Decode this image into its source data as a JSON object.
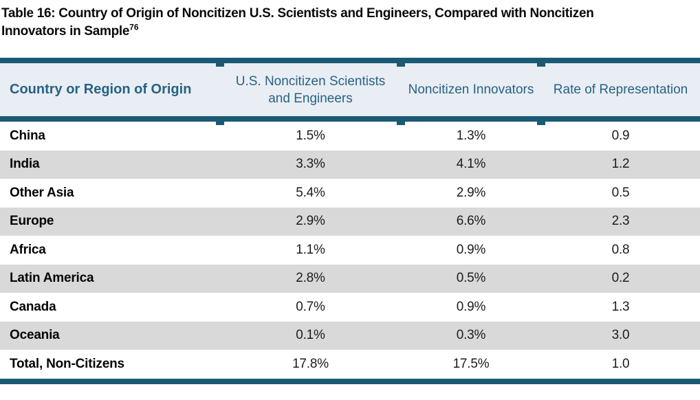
{
  "document": {
    "title": "Table 16: Country of Origin of Noncitizen U.S. Scientists and Engineers, Compared with Noncitizen Innovators in Sample",
    "footnote_marker": "76"
  },
  "table": {
    "columns": [
      "Country or Region of Origin",
      "U.S. Noncitizen Scientists and Engineers",
      "Noncitizen Innovators",
      "Rate of Representation"
    ],
    "rows": [
      {
        "label": "China",
        "values": [
          "1.5%",
          "1.3%",
          "0.9"
        ]
      },
      {
        "label": "India",
        "values": [
          "3.3%",
          "4.1%",
          "1.2"
        ]
      },
      {
        "label": "Other Asia",
        "values": [
          "5.4%",
          "2.9%",
          "0.5"
        ]
      },
      {
        "label": "Europe",
        "values": [
          "2.9%",
          "6.6%",
          "2.3"
        ]
      },
      {
        "label": "Africa",
        "values": [
          "1.1%",
          "0.9%",
          "0.8"
        ]
      },
      {
        "label": "Latin America",
        "values": [
          "2.8%",
          "0.5%",
          "0.2"
        ]
      },
      {
        "label": "Canada",
        "values": [
          "0.7%",
          "0.9%",
          "1.3"
        ]
      },
      {
        "label": "Oceania",
        "values": [
          "0.1%",
          "0.3%",
          "3.0"
        ]
      },
      {
        "label": "Total, Non-Citizens",
        "values": [
          "17.8%",
          "17.5%",
          "1.0"
        ]
      }
    ]
  },
  "colors": {
    "accent_teal": "#1b5a74",
    "header_bg": "#e9edf4",
    "header_text": "#266283",
    "row_stripe": "#d9d9d9"
  }
}
